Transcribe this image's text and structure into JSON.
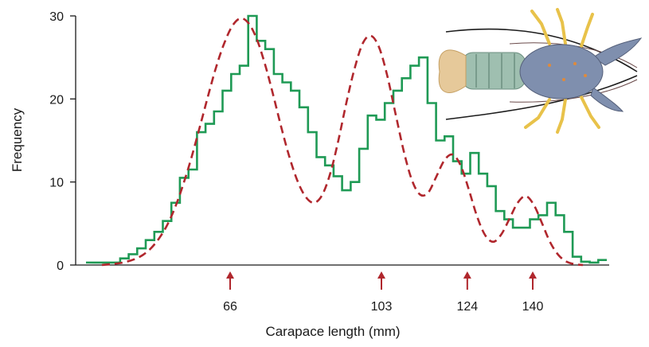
{
  "chart_data": {
    "type": "line",
    "title": "",
    "xlabel": "Carapace length (mm)",
    "ylabel": "Frequency",
    "ylim": [
      0,
      30
    ],
    "yticks": [
      0,
      10,
      20,
      30
    ],
    "grid": false,
    "legend": "none",
    "x_marked_values": [
      66,
      103,
      124,
      140
    ],
    "x_marker_color": "#b0272d",
    "series": [
      {
        "style": "step",
        "color": "#1f9a55",
        "values": [
          0.3,
          0.3,
          0.3,
          0.3,
          0.8,
          1.3,
          2.0,
          3.0,
          4.0,
          5.3,
          7.5,
          10.5,
          11.5,
          16.0,
          17.0,
          18.5,
          21.0,
          23.0,
          24.0,
          30.0,
          27.0,
          26.0,
          23.0,
          22.0,
          21.0,
          19.0,
          16.0,
          13.0,
          12.0,
          10.7,
          9.0,
          10.0,
          14.0,
          18.0,
          17.5,
          19.5,
          21.0,
          22.5,
          24.0,
          25.0,
          19.5,
          15.0,
          15.5,
          12.5,
          11.0,
          13.5,
          11.0,
          9.5,
          6.5,
          5.5,
          4.5,
          4.5,
          5.5,
          6.0,
          7.5,
          6.0,
          4.0,
          1.0,
          0.4,
          0.3,
          0.6
        ]
      },
      {
        "style": "dashed",
        "color": "#b0272d",
        "values": [
          0.0,
          0.1,
          0.2,
          0.4,
          0.7,
          1.2,
          2.0,
          3.2,
          4.8,
          7.0,
          9.8,
          13.0,
          16.6,
          20.3,
          23.8,
          26.7,
          28.8,
          29.7,
          29.1,
          27.2,
          24.2,
          20.5,
          16.6,
          13.0,
          10.1,
          8.2,
          7.5,
          8.4,
          11.0,
          15.0,
          19.6,
          23.7,
          26.7,
          27.6,
          26.2,
          22.8,
          18.3,
          13.8,
          10.3,
          8.5,
          8.7,
          10.6,
          12.6,
          13.3,
          12.0,
          9.1,
          5.9,
          3.6,
          2.8,
          3.7,
          5.6,
          7.5,
          8.3,
          7.2,
          5.0,
          2.7,
          1.2,
          0.4,
          0.1,
          0.0
        ]
      }
    ]
  },
  "illustration": {
    "subject": "lobster-illustration",
    "colors": {
      "body": "#7f8fae",
      "tail": "#9fbfb0",
      "tail_fan": "#e6c99a",
      "legs": "#e8c24a",
      "antennae": "#1c1c1c"
    }
  }
}
